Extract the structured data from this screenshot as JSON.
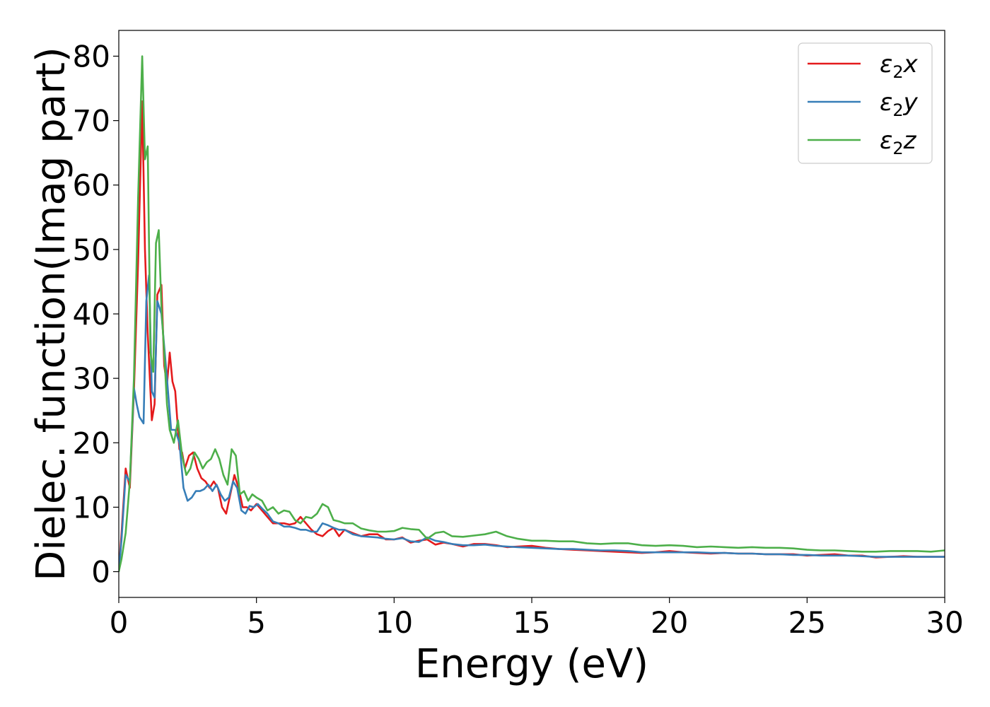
{
  "chart_data": {
    "type": "line",
    "title": "",
    "xlabel": "Energy (eV)",
    "ylabel": "Dielec. function(Imag part)",
    "xlim": [
      0,
      30
    ],
    "ylim": [
      -4,
      84
    ],
    "xticks": [
      0,
      5,
      10,
      15,
      20,
      25,
      30
    ],
    "yticks": [
      0,
      10,
      20,
      30,
      40,
      50,
      60,
      70,
      80
    ],
    "grid": false,
    "legend_position": "top-right",
    "series": [
      {
        "name": "ε₂x",
        "label_base": "ε",
        "label_sub": "2",
        "label_suffix": "x",
        "color": "#e41a1c",
        "x": [
          0,
          0.1,
          0.25,
          0.4,
          0.55,
          0.7,
          0.85,
          0.95,
          1.05,
          1.2,
          1.3,
          1.4,
          1.55,
          1.65,
          1.75,
          1.85,
          1.95,
          2.05,
          2.2,
          2.3,
          2.4,
          2.55,
          2.7,
          2.85,
          3.0,
          3.15,
          3.3,
          3.45,
          3.6,
          3.75,
          3.9,
          4.05,
          4.2,
          4.35,
          4.5,
          4.65,
          4.8,
          5.0,
          5.2,
          5.4,
          5.6,
          5.8,
          6.0,
          6.2,
          6.4,
          6.6,
          6.8,
          7.0,
          7.2,
          7.4,
          7.6,
          7.8,
          8.0,
          8.2,
          8.5,
          8.8,
          9.1,
          9.4,
          9.7,
          10.0,
          10.3,
          10.6,
          10.9,
          11.2,
          11.5,
          11.8,
          12.1,
          12.5,
          12.9,
          13.3,
          13.7,
          14.1,
          14.5,
          15.0,
          15.5,
          16.0,
          16.5,
          17.0,
          17.5,
          18.0,
          18.5,
          19.0,
          19.5,
          20.0,
          20.5,
          21.0,
          21.5,
          22.0,
          22.5,
          23.0,
          23.5,
          24.0,
          24.5,
          25.0,
          25.5,
          26.0,
          26.5,
          27.0,
          27.5,
          28.0,
          28.5,
          29.0,
          29.5,
          30.0
        ],
        "y": [
          0,
          6,
          16,
          13,
          28,
          48,
          73,
          50,
          37,
          23.5,
          26,
          43,
          44.5,
          32,
          29,
          34,
          29.5,
          28,
          19,
          18.5,
          16,
          18,
          18.5,
          16,
          14.5,
          14,
          13,
          14,
          13,
          10,
          9,
          12,
          15,
          13,
          10,
          10,
          9.5,
          10.5,
          9.5,
          8.5,
          7.5,
          7.5,
          7.5,
          7.3,
          7.5,
          8.5,
          7.5,
          6.5,
          5.8,
          5.5,
          6.3,
          6.8,
          5.5,
          6.5,
          6,
          5.5,
          5.8,
          5.8,
          5,
          5,
          5.3,
          4.5,
          4.8,
          5,
          4.2,
          4.5,
          4.3,
          3.9,
          4.3,
          4.3,
          4.1,
          3.8,
          3.9,
          4,
          3.7,
          3.5,
          3.4,
          3.3,
          3.2,
          3.1,
          3,
          2.9,
          3,
          3.2,
          3,
          2.9,
          2.8,
          2.9,
          2.8,
          2.8,
          2.7,
          2.7,
          2.7,
          2.5,
          2.6,
          2.7,
          2.5,
          2.5,
          2.2,
          2.3,
          2.4,
          2.3,
          2.3,
          2.3
        ]
      },
      {
        "name": "ε₂y",
        "label_base": "ε",
        "label_sub": "2",
        "label_suffix": "y",
        "color": "#377eb8",
        "x": [
          0,
          0.1,
          0.25,
          0.4,
          0.55,
          0.65,
          0.75,
          0.9,
          1.0,
          1.1,
          1.2,
          1.3,
          1.4,
          1.55,
          1.65,
          1.75,
          1.9,
          2.05,
          2.2,
          2.35,
          2.5,
          2.65,
          2.8,
          2.95,
          3.1,
          3.25,
          3.4,
          3.55,
          3.7,
          3.85,
          4.0,
          4.15,
          4.3,
          4.45,
          4.6,
          4.75,
          4.9,
          5.05,
          5.2,
          5.4,
          5.6,
          5.8,
          6.0,
          6.2,
          6.4,
          6.6,
          6.8,
          7.0,
          7.2,
          7.4,
          7.6,
          7.8,
          8.0,
          8.2,
          8.5,
          8.8,
          9.1,
          9.4,
          9.7,
          10.0,
          10.3,
          10.6,
          10.9,
          11.2,
          11.5,
          11.8,
          12.1,
          12.5,
          12.9,
          13.3,
          13.7,
          14.1,
          14.5,
          15.0,
          15.5,
          16.0,
          16.5,
          17.0,
          17.5,
          18.0,
          18.5,
          19.0,
          19.5,
          20.0,
          20.5,
          21.0,
          21.5,
          22.0,
          22.5,
          23.0,
          23.5,
          24.0,
          24.5,
          25.0,
          25.5,
          26.0,
          26.5,
          27.0,
          27.5,
          28.0,
          28.5,
          29.0,
          29.5,
          30.0
        ],
        "y": [
          0,
          5,
          15,
          14,
          28.5,
          26,
          24,
          23,
          42,
          46,
          28,
          27,
          42,
          40,
          35,
          30,
          22,
          22,
          20,
          13,
          11,
          11.5,
          12.5,
          12.5,
          12.8,
          13.5,
          12.5,
          13.5,
          12,
          11,
          11.5,
          14,
          13,
          9.5,
          9,
          10.2,
          10,
          10.5,
          9.8,
          9,
          7.8,
          7.5,
          7,
          7,
          6.8,
          6.5,
          6.5,
          6.2,
          6.2,
          7.5,
          7.2,
          6.8,
          6.5,
          6.5,
          5.8,
          5.5,
          5.4,
          5.3,
          5.1,
          5,
          5.2,
          4.7,
          4.6,
          5.3,
          4.8,
          4.6,
          4.3,
          4.1,
          4.1,
          4.2,
          4,
          3.9,
          3.8,
          3.7,
          3.6,
          3.5,
          3.5,
          3.4,
          3.3,
          3.3,
          3.2,
          3,
          3,
          3,
          3,
          3,
          2.9,
          2.9,
          2.8,
          2.8,
          2.7,
          2.7,
          2.6,
          2.6,
          2.5,
          2.5,
          2.5,
          2.4,
          2.3,
          2.3,
          2.3,
          2.3,
          2.3,
          2.3
        ]
      },
      {
        "name": "ε₂z",
        "label_base": "ε",
        "label_sub": "2",
        "label_suffix": "z",
        "color": "#4daf4a",
        "x": [
          0,
          0.1,
          0.25,
          0.4,
          0.55,
          0.7,
          0.85,
          0.95,
          1.05,
          1.15,
          1.25,
          1.35,
          1.45,
          1.55,
          1.65,
          1.75,
          1.85,
          2.0,
          2.15,
          2.3,
          2.45,
          2.6,
          2.75,
          2.9,
          3.05,
          3.2,
          3.35,
          3.5,
          3.65,
          3.8,
          3.95,
          4.1,
          4.25,
          4.4,
          4.55,
          4.7,
          4.85,
          5.0,
          5.2,
          5.4,
          5.6,
          5.8,
          6.0,
          6.2,
          6.4,
          6.6,
          6.8,
          7.0,
          7.2,
          7.4,
          7.6,
          7.8,
          8.0,
          8.2,
          8.5,
          8.8,
          9.1,
          9.4,
          9.7,
          10.0,
          10.3,
          10.6,
          10.9,
          11.2,
          11.5,
          11.8,
          12.1,
          12.5,
          12.9,
          13.3,
          13.7,
          14.1,
          14.5,
          15.0,
          15.5,
          16.0,
          16.5,
          17.0,
          17.5,
          18.0,
          18.5,
          19.0,
          19.5,
          20.0,
          20.5,
          21.0,
          21.5,
          22.0,
          22.5,
          23.0,
          23.5,
          24.0,
          24.5,
          25.0,
          25.5,
          26.0,
          26.5,
          27.0,
          27.5,
          28.0,
          28.5,
          29.0,
          29.5,
          30.0
        ],
        "y": [
          0,
          2,
          6,
          14,
          30,
          58,
          80,
          64,
          66,
          34,
          31,
          51,
          53,
          41,
          34,
          26,
          22,
          20,
          23.5,
          18,
          15,
          16,
          18.5,
          17.5,
          16,
          17,
          17.5,
          19,
          17.5,
          15,
          13.5,
          19,
          18,
          12,
          12.5,
          11,
          12,
          11.5,
          11,
          9.5,
          10,
          9,
          9.5,
          9.3,
          8,
          7.5,
          8.5,
          8.3,
          9,
          10.5,
          10,
          8,
          7.8,
          7.5,
          7.5,
          6.7,
          6.4,
          6.2,
          6.2,
          6.3,
          6.8,
          6.6,
          6.5,
          5.1,
          6,
          6.2,
          5.5,
          5.4,
          5.6,
          5.8,
          6.2,
          5.5,
          5.1,
          4.8,
          4.8,
          4.7,
          4.7,
          4.4,
          4.3,
          4.4,
          4.4,
          4.1,
          4,
          4.1,
          4,
          3.8,
          3.9,
          3.8,
          3.7,
          3.8,
          3.7,
          3.7,
          3.6,
          3.4,
          3.3,
          3.3,
          3.2,
          3.1,
          3.1,
          3.2,
          3.2,
          3.2,
          3.1,
          3.3
        ]
      }
    ]
  }
}
